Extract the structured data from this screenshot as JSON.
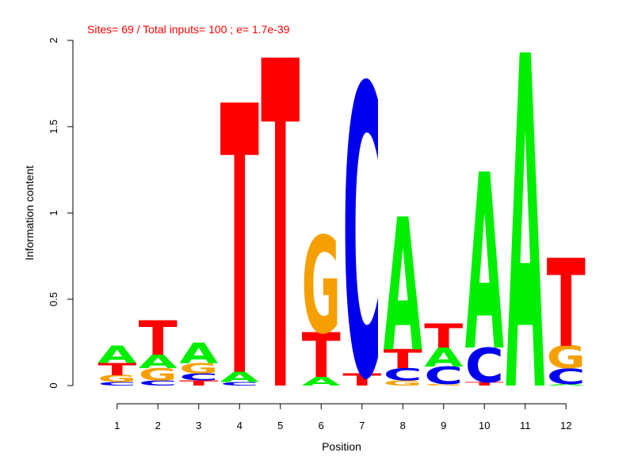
{
  "chart_data": {
    "type": "sequence-logo",
    "title": "Sites= 69 / Total inputs= 100 ; e= 1.7e-39",
    "xlabel": "Position",
    "ylabel": "Information content",
    "ylim": [
      0,
      2
    ],
    "y_ticks": [
      "0",
      "0.5",
      "1",
      "1.5",
      "2"
    ],
    "colors": {
      "A": "#00ee00",
      "C": "#0000ee",
      "G": "#f5a000",
      "T": "#ff0000",
      "title": "#ff0000"
    },
    "positions": [
      {
        "label": "1",
        "stack": [
          {
            "base": "C",
            "height": 0.02
          },
          {
            "base": "G",
            "height": 0.04
          },
          {
            "base": "T",
            "height": 0.07
          },
          {
            "base": "A",
            "height": 0.1
          }
        ]
      },
      {
        "label": "2",
        "stack": [
          {
            "base": "C",
            "height": 0.03
          },
          {
            "base": "G",
            "height": 0.07
          },
          {
            "base": "A",
            "height": 0.08
          },
          {
            "base": "T",
            "height": 0.2
          }
        ]
      },
      {
        "label": "3",
        "stack": [
          {
            "base": "T",
            "height": 0.03
          },
          {
            "base": "C",
            "height": 0.04
          },
          {
            "base": "G",
            "height": 0.06
          },
          {
            "base": "A",
            "height": 0.12
          }
        ]
      },
      {
        "label": "4",
        "stack": [
          {
            "base": "C",
            "height": 0.02
          },
          {
            "base": "A",
            "height": 0.06
          },
          {
            "base": "T",
            "height": 1.56
          }
        ]
      },
      {
        "label": "5",
        "stack": [
          {
            "base": "T",
            "height": 1.9
          }
        ]
      },
      {
        "label": "6",
        "stack": [
          {
            "base": "A",
            "height": 0.05
          },
          {
            "base": "T",
            "height": 0.26
          },
          {
            "base": "G",
            "height": 0.56
          }
        ]
      },
      {
        "label": "7",
        "stack": [
          {
            "base": "T",
            "height": 0.07
          },
          {
            "base": "C",
            "height": 1.68
          }
        ]
      },
      {
        "label": "8",
        "stack": [
          {
            "base": "G",
            "height": 0.03
          },
          {
            "base": "C",
            "height": 0.07
          },
          {
            "base": "T",
            "height": 0.11
          },
          {
            "base": "A",
            "height": 0.77
          }
        ]
      },
      {
        "label": "9",
        "stack": [
          {
            "base": "G",
            "height": 0.01
          },
          {
            "base": "C",
            "height": 0.1
          },
          {
            "base": "A",
            "height": 0.11
          },
          {
            "base": "T",
            "height": 0.14
          }
        ]
      },
      {
        "label": "10",
        "stack": [
          {
            "base": "T",
            "height": 0.02
          },
          {
            "base": "C",
            "height": 0.2
          },
          {
            "base": "A",
            "height": 1.02
          }
        ]
      },
      {
        "label": "11",
        "stack": [
          {
            "base": "A",
            "height": 1.93
          }
        ]
      },
      {
        "label": "12",
        "stack": [
          {
            "base": "A",
            "height": 0.01
          },
          {
            "base": "C",
            "height": 0.09
          },
          {
            "base": "G",
            "height": 0.13
          },
          {
            "base": "T",
            "height": 0.51
          }
        ]
      }
    ]
  }
}
